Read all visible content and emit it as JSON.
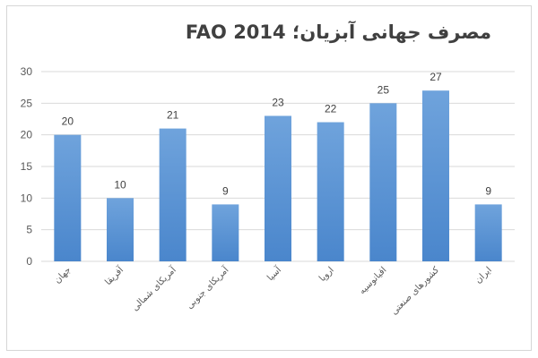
{
  "chart_data": {
    "type": "bar",
    "title": "مصرف جهانی آبزیان؛ FAO  2014",
    "categories": [
      "جهان",
      "آفریقا",
      "آمریکای شمالی",
      "آمریکای جنوبی",
      "آسیا",
      "اروپا",
      "اقیانوسیه",
      "کشورهای صنعتی",
      "ایران"
    ],
    "values": [
      20,
      10,
      21,
      9,
      23,
      22,
      25,
      27,
      9
    ],
    "data_labels": [
      "20",
      "10",
      "21",
      "9",
      "23",
      "22",
      "25",
      "27",
      "9"
    ],
    "ylim": [
      0,
      30
    ],
    "yticks": [
      "0",
      "5",
      "10",
      "15",
      "20",
      "25",
      "30"
    ],
    "grid": true,
    "legend": "none",
    "colors": {
      "bar_top": "#6fa3dc",
      "bar_bottom": "#4a86cc",
      "grid": "#d9d9d9",
      "text": "#404040"
    }
  }
}
